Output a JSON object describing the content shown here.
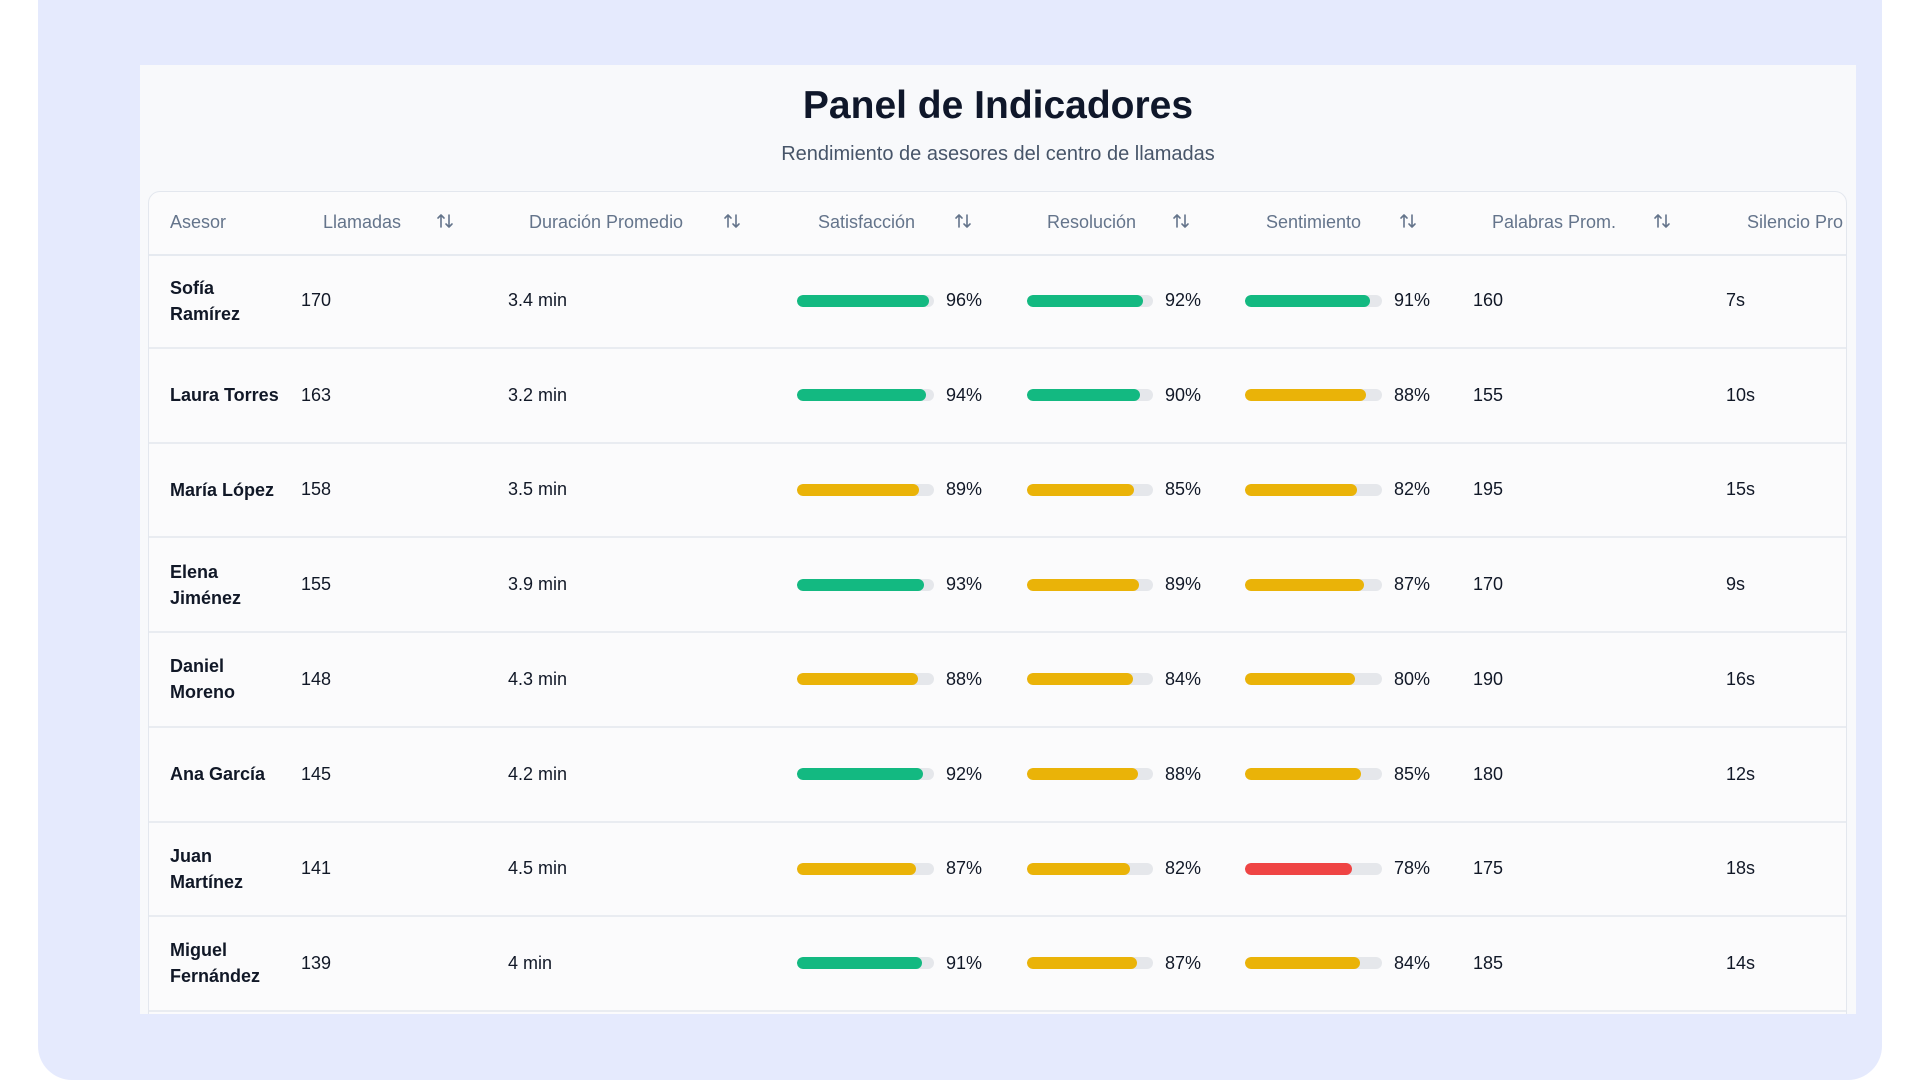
{
  "header": {
    "title": "Panel de Indicadores",
    "subtitle": "Rendimiento de asesores del centro de llamadas"
  },
  "table": {
    "columns": [
      {
        "label": "Asesor",
        "sortable": false
      },
      {
        "label": "Llamadas",
        "sortable": true
      },
      {
        "label": "Duración Promedio",
        "sortable": true
      },
      {
        "label": "Satisfacción",
        "sortable": true
      },
      {
        "label": "Resolución",
        "sortable": true
      },
      {
        "label": "Sentimiento",
        "sortable": true
      },
      {
        "label": "Palabras Prom.",
        "sortable": true
      },
      {
        "label": "Silencio Pro",
        "sortable": false
      }
    ],
    "sort_icon": "sort-arrows-icon",
    "rows": [
      {
        "asesor": "Sofía Ramírez",
        "llamadas": "170",
        "duracion": "3.4 min",
        "satisfaccion": 96,
        "resolucion": 92,
        "sentimiento": 91,
        "palabras": "160",
        "silencio": "7s"
      },
      {
        "asesor": "Laura Torres",
        "llamadas": "163",
        "duracion": "3.2 min",
        "satisfaccion": 94,
        "resolucion": 90,
        "sentimiento": 88,
        "palabras": "155",
        "silencio": "10s"
      },
      {
        "asesor": "María López",
        "llamadas": "158",
        "duracion": "3.5 min",
        "satisfaccion": 89,
        "resolucion": 85,
        "sentimiento": 82,
        "palabras": "195",
        "silencio": "15s"
      },
      {
        "asesor": "Elena Jiménez",
        "llamadas": "155",
        "duracion": "3.9 min",
        "satisfaccion": 93,
        "resolucion": 89,
        "sentimiento": 87,
        "palabras": "170",
        "silencio": "9s"
      },
      {
        "asesor": "Daniel Moreno",
        "llamadas": "148",
        "duracion": "4.3 min",
        "satisfaccion": 88,
        "resolucion": 84,
        "sentimiento": 80,
        "palabras": "190",
        "silencio": "16s"
      },
      {
        "asesor": "Ana García",
        "llamadas": "145",
        "duracion": "4.2 min",
        "satisfaccion": 92,
        "resolucion": 88,
        "sentimiento": 85,
        "palabras": "180",
        "silencio": "12s"
      },
      {
        "asesor": "Juan Martínez",
        "llamadas": "141",
        "duracion": "4.5 min",
        "satisfaccion": 87,
        "resolucion": 82,
        "sentimiento": 78,
        "palabras": "175",
        "silencio": "18s"
      },
      {
        "asesor": "Miguel Fernández",
        "llamadas": "139",
        "duracion": "4 min",
        "satisfaccion": 91,
        "resolucion": 87,
        "sentimiento": 84,
        "palabras": "185",
        "silencio": "14s"
      }
    ]
  },
  "colors": {
    "good": "#13b981",
    "medium": "#eab308",
    "bad": "#ef4444",
    "track": "#e5e7eb"
  }
}
